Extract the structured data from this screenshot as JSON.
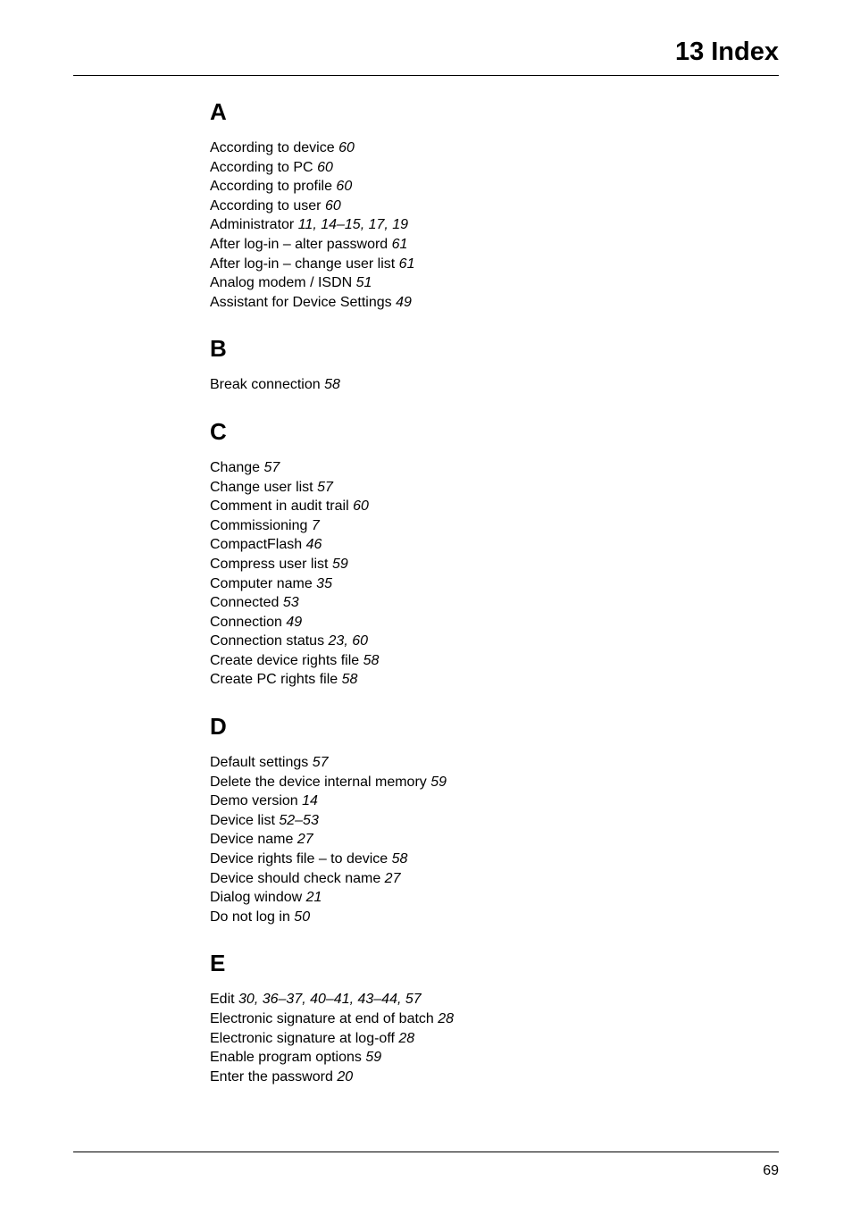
{
  "page_title": "13 Index",
  "sections": [
    {
      "heading": "A",
      "entries": [
        {
          "term": "According to device",
          "pages": "60"
        },
        {
          "term": "According to PC",
          "pages": "60"
        },
        {
          "term": "According to profile",
          "pages": "60"
        },
        {
          "term": "According to user",
          "pages": "60"
        },
        {
          "term": "Administrator",
          "pages": "11, 14–15, 17, 19"
        },
        {
          "term": "After log-in – alter password",
          "pages": "61"
        },
        {
          "term": "After log-in – change user list",
          "pages": "61"
        },
        {
          "term": "Analog modem / ISDN",
          "pages": "51"
        },
        {
          "term": "Assistant for Device Settings",
          "pages": "49"
        }
      ]
    },
    {
      "heading": "B",
      "entries": [
        {
          "term": "Break connection",
          "pages": "58"
        }
      ]
    },
    {
      "heading": "C",
      "entries": [
        {
          "term": "Change",
          "pages": "57"
        },
        {
          "term": "Change user list",
          "pages": "57"
        },
        {
          "term": "Comment in audit trail",
          "pages": "60"
        },
        {
          "term": "Commissioning",
          "pages": "7"
        },
        {
          "term": "CompactFlash",
          "pages": "46"
        },
        {
          "term": "Compress user list",
          "pages": "59"
        },
        {
          "term": "Computer name",
          "pages": "35"
        },
        {
          "term": "Connected",
          "pages": "53"
        },
        {
          "term": "Connection",
          "pages": "49"
        },
        {
          "term": "Connection status",
          "pages": "23, 60"
        },
        {
          "term": "Create device rights file",
          "pages": "58"
        },
        {
          "term": "Create PC rights file",
          "pages": "58"
        }
      ]
    },
    {
      "heading": "D",
      "entries": [
        {
          "term": "Default settings",
          "pages": "57"
        },
        {
          "term": "Delete the device internal memory",
          "pages": "59"
        },
        {
          "term": "Demo version",
          "pages": "14"
        },
        {
          "term": "Device list",
          "pages": "52–53"
        },
        {
          "term": "Device name",
          "pages": "27"
        },
        {
          "term": "Device rights file – to device",
          "pages": "58"
        },
        {
          "term": "Device should check name",
          "pages": "27"
        },
        {
          "term": "Dialog window",
          "pages": "21"
        },
        {
          "term": "Do not log in",
          "pages": "50"
        }
      ]
    },
    {
      "heading": "E",
      "entries": [
        {
          "term": "Edit",
          "pages": "30, 36–37, 40–41, 43–44, 57"
        },
        {
          "term": "Electronic signature at end of batch",
          "pages": "28"
        },
        {
          "term": "Electronic signature at log-off",
          "pages": "28"
        },
        {
          "term": "Enable program options",
          "pages": "59"
        },
        {
          "term": "Enter the password",
          "pages": "20"
        }
      ]
    }
  ],
  "page_number": "69"
}
